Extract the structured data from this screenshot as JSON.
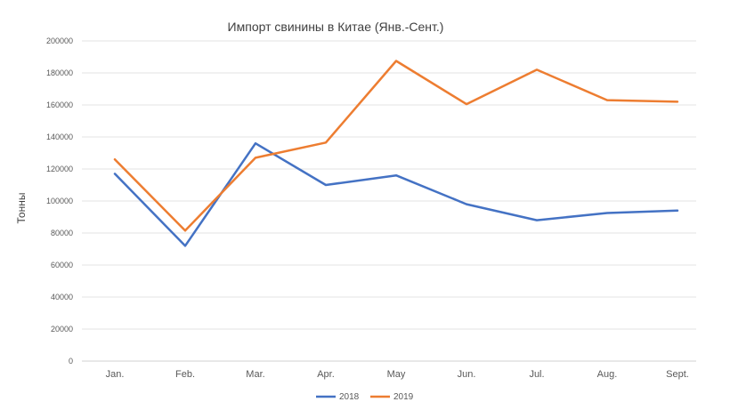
{
  "chart_data": {
    "type": "line",
    "title": "Импорт свинины в Китае (Янв.-Сент.)",
    "xlabel": "",
    "ylabel": "Тонны",
    "categories": [
      "Jan.",
      "Feb.",
      "Mar.",
      "Apr.",
      "May",
      "Jun.",
      "Jul.",
      "Aug.",
      "Sept."
    ],
    "ylim": [
      0,
      200000
    ],
    "yticks": [
      0,
      20000,
      40000,
      60000,
      80000,
      100000,
      120000,
      140000,
      160000,
      180000,
      200000
    ],
    "grid": true,
    "legend_position": "bottom",
    "series": [
      {
        "name": "2018",
        "color": "#4472c4",
        "values": [
          117000,
          72000,
          136000,
          110000,
          116000,
          98000,
          88000,
          92500,
          94000
        ]
      },
      {
        "name": "2019",
        "color": "#ed7d31",
        "values": [
          126000,
          81500,
          127000,
          136500,
          187500,
          160500,
          182000,
          163000,
          162000
        ]
      }
    ]
  }
}
